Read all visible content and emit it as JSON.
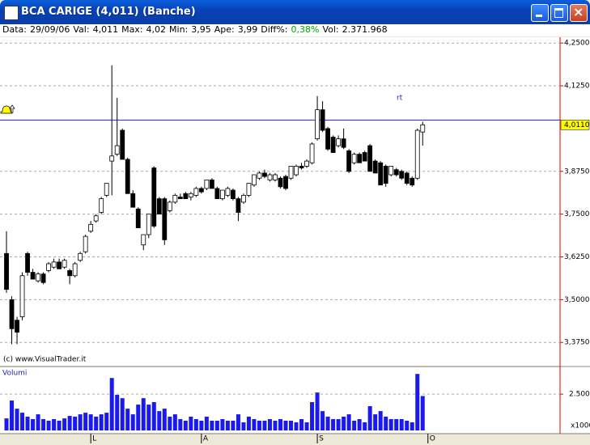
{
  "window": {
    "title": "BCA CARIGE (4,011)  (Banche)"
  },
  "info_bar": [
    {
      "label": "Data:",
      "value": "29/09/06"
    },
    {
      "label": "Val:",
      "value": "4,011"
    },
    {
      "label": "Max:",
      "value": "4,02"
    },
    {
      "label": "Min:",
      "value": "3,95"
    },
    {
      "label": "Ape:",
      "value": "3,99"
    },
    {
      "label": "Diff%:",
      "value": "0,38%"
    },
    {
      "label": "Vol:",
      "value": "2.371.968"
    }
  ],
  "chart_data": [
    {
      "type": "candlestick",
      "source": "(c) www.VisualTrader.it",
      "annotation": "rt",
      "alarm_level": 4.025,
      "last_price": {
        "value": 4.011,
        "label": "4,0110"
      },
      "xlim": [
        -1,
        105
      ],
      "ylim": [
        3.307,
        4.267
      ],
      "yticks": [
        {
          "value": 3.375,
          "label": "3,3750"
        },
        {
          "value": 3.5,
          "label": "3,5000"
        },
        {
          "value": 3.625,
          "label": "3,6250"
        },
        {
          "value": 3.75,
          "label": "3,7500"
        },
        {
          "value": 3.875,
          "label": "3,8750"
        },
        {
          "value": 4.125,
          "label": "4,1250"
        },
        {
          "value": 4.25,
          "label": "4,2500"
        }
      ],
      "grid": true,
      "x": [
        0,
        1,
        2,
        3,
        4,
        5,
        6,
        7,
        8,
        9,
        10,
        11,
        12,
        13,
        14,
        15,
        16,
        17,
        18,
        19,
        20,
        21,
        22,
        23,
        24,
        25,
        26,
        27,
        28,
        29,
        30,
        31,
        32,
        33,
        34,
        35,
        36,
        37,
        38,
        39,
        40,
        41,
        42,
        43,
        44,
        45,
        46,
        47,
        48,
        49,
        50,
        51,
        52,
        53,
        54,
        55,
        56,
        57,
        58,
        59,
        60,
        61,
        62,
        63,
        64,
        65,
        66,
        67,
        68,
        69,
        70,
        71,
        72,
        73,
        74,
        75,
        76,
        77,
        78,
        79
      ],
      "ohlc": [
        [
          3.635,
          3.7,
          3.52,
          3.53
        ],
        [
          3.5,
          3.51,
          3.37,
          3.415
        ],
        [
          3.44,
          3.45,
          3.37,
          3.405
        ],
        [
          3.45,
          3.58,
          3.44,
          3.57
        ],
        [
          3.635,
          3.64,
          3.57,
          3.58
        ],
        [
          3.58,
          3.59,
          3.56,
          3.56
        ],
        [
          3.555,
          3.58,
          3.55,
          3.575
        ],
        [
          3.575,
          3.58,
          3.545,
          3.55
        ],
        [
          3.585,
          3.61,
          3.58,
          3.605
        ],
        [
          3.595,
          3.62,
          3.59,
          3.61
        ],
        [
          3.61,
          3.62,
          3.59,
          3.59
        ],
        [
          3.595,
          3.62,
          3.59,
          3.615
        ],
        [
          3.585,
          3.59,
          3.545,
          3.57
        ],
        [
          3.57,
          3.61,
          3.565,
          3.605
        ],
        [
          3.615,
          3.64,
          3.61,
          3.635
        ],
        [
          3.64,
          3.69,
          3.635,
          3.685
        ],
        [
          3.7,
          3.73,
          3.695,
          3.72
        ],
        [
          3.73,
          3.75,
          3.725,
          3.745
        ],
        [
          3.755,
          3.8,
          3.75,
          3.795
        ],
        [
          3.805,
          3.84,
          3.8,
          3.84
        ],
        [
          3.905,
          4.185,
          3.805,
          3.92
        ],
        [
          3.925,
          4.09,
          3.92,
          3.95
        ],
        [
          3.995,
          4.0,
          3.91,
          3.91
        ],
        [
          3.91,
          3.915,
          3.81,
          3.81
        ],
        [
          3.81,
          3.82,
          3.77,
          3.77
        ],
        [
          3.765,
          3.77,
          3.71,
          3.71
        ],
        [
          3.66,
          3.69,
          3.645,
          3.69
        ],
        [
          3.69,
          3.75,
          3.68,
          3.75
        ],
        [
          3.885,
          3.89,
          3.71,
          3.715
        ],
        [
          3.795,
          3.8,
          3.75,
          3.75
        ],
        [
          3.795,
          3.8,
          3.66,
          3.675
        ],
        [
          3.76,
          3.79,
          3.755,
          3.785
        ],
        [
          3.785,
          3.81,
          3.78,
          3.805
        ],
        [
          3.8,
          3.81,
          3.795,
          3.795
        ],
        [
          3.81,
          3.815,
          3.795,
          3.795
        ],
        [
          3.8,
          3.815,
          3.79,
          3.81
        ],
        [
          3.805,
          3.83,
          3.8,
          3.825
        ],
        [
          3.825,
          3.83,
          3.81,
          3.815
        ],
        [
          3.825,
          3.85,
          3.82,
          3.85
        ],
        [
          3.85,
          3.855,
          3.825,
          3.825
        ],
        [
          3.825,
          3.83,
          3.795,
          3.795
        ],
        [
          3.795,
          3.82,
          3.79,
          3.82
        ],
        [
          3.805,
          3.83,
          3.8,
          3.825
        ],
        [
          3.82,
          3.825,
          3.79,
          3.795
        ],
        [
          3.795,
          3.8,
          3.73,
          3.755
        ],
        [
          3.785,
          3.81,
          3.78,
          3.805
        ],
        [
          3.805,
          3.84,
          3.8,
          3.84
        ],
        [
          3.835,
          3.865,
          3.83,
          3.865
        ],
        [
          3.855,
          3.875,
          3.85,
          3.87
        ],
        [
          3.87,
          3.88,
          3.855,
          3.86
        ],
        [
          3.85,
          3.87,
          3.845,
          3.865
        ],
        [
          3.85,
          3.87,
          3.845,
          3.865
        ],
        [
          3.855,
          3.86,
          3.825,
          3.83
        ],
        [
          3.86,
          3.865,
          3.82,
          3.825
        ],
        [
          3.855,
          3.89,
          3.85,
          3.89
        ],
        [
          3.865,
          3.895,
          3.86,
          3.89
        ],
        [
          3.89,
          3.9,
          3.88,
          3.885
        ],
        [
          3.89,
          3.91,
          3.885,
          3.905
        ],
        [
          3.9,
          3.96,
          3.895,
          3.955
        ],
        [
          3.97,
          4.095,
          3.965,
          4.055
        ],
        [
          4.055,
          4.08,
          3.99,
          3.995
        ],
        [
          4.0,
          4.005,
          3.935,
          3.94
        ],
        [
          3.975,
          3.98,
          3.93,
          3.93
        ],
        [
          3.95,
          3.98,
          3.945,
          3.97
        ],
        [
          3.97,
          4.0,
          3.94,
          3.945
        ],
        [
          3.935,
          3.94,
          3.87,
          3.875
        ],
        [
          3.9,
          3.93,
          3.895,
          3.925
        ],
        [
          3.925,
          3.93,
          3.9,
          3.9
        ],
        [
          3.93,
          3.935,
          3.905,
          3.905
        ],
        [
          3.95,
          3.955,
          3.875,
          3.875
        ],
        [
          3.905,
          3.91,
          3.87,
          3.87
        ],
        [
          3.9,
          3.905,
          3.835,
          3.835
        ],
        [
          3.89,
          3.895,
          3.83,
          3.84
        ],
        [
          3.865,
          3.89,
          3.86,
          3.89
        ],
        [
          3.88,
          3.885,
          3.86,
          3.865
        ],
        [
          3.875,
          3.88,
          3.85,
          3.855
        ],
        [
          3.87,
          3.875,
          3.835,
          3.84
        ],
        [
          3.855,
          3.86,
          3.83,
          3.835
        ],
        [
          3.855,
          4.0,
          3.85,
          3.995
        ],
        [
          3.99,
          4.02,
          3.95,
          4.011
        ]
      ]
    },
    {
      "type": "bar",
      "title": "Volumi",
      "unit_label": "x1000",
      "color": "#1a1aee",
      "xlim": [
        -1,
        105
      ],
      "xticks": [
        {
          "value": 16,
          "label": "L"
        },
        {
          "value": 37,
          "label": "A"
        },
        {
          "value": 59,
          "label": "S"
        },
        {
          "value": 80,
          "label": "O"
        }
      ],
      "ylim": [
        0,
        3900
      ],
      "yticks": [
        {
          "value": 2500,
          "label": "2.500"
        }
      ],
      "grid": true,
      "x": [
        0,
        1,
        2,
        3,
        4,
        5,
        6,
        7,
        8,
        9,
        10,
        11,
        12,
        13,
        14,
        15,
        16,
        17,
        18,
        19,
        20,
        21,
        22,
        23,
        24,
        25,
        26,
        27,
        28,
        29,
        30,
        31,
        32,
        33,
        34,
        35,
        36,
        37,
        38,
        39,
        40,
        41,
        42,
        43,
        44,
        45,
        46,
        47,
        48,
        49,
        50,
        51,
        52,
        53,
        54,
        55,
        56,
        57,
        58,
        59,
        60,
        61,
        62,
        63,
        64,
        65,
        66,
        67,
        68,
        69,
        70,
        71,
        72,
        73,
        74,
        75,
        76,
        77,
        78,
        79
      ],
      "values": [
        830,
        2060,
        1500,
        1220,
        950,
        780,
        1110,
        780,
        670,
        780,
        670,
        830,
        1000,
        950,
        1110,
        1220,
        1110,
        950,
        1110,
        1220,
        3610,
        2450,
        2220,
        1500,
        1110,
        1780,
        2220,
        1780,
        1950,
        1330,
        1500,
        950,
        1110,
        780,
        670,
        950,
        780,
        670,
        950,
        670,
        670,
        780,
        670,
        670,
        1110,
        560,
        950,
        780,
        670,
        670,
        780,
        670,
        780,
        670,
        670,
        560,
        780,
        560,
        1950,
        2610,
        1330,
        950,
        780,
        780,
        950,
        1110,
        670,
        780,
        560,
        1670,
        1110,
        1330,
        950,
        780,
        780,
        780,
        670,
        560,
        3890,
        2370
      ]
    }
  ]
}
